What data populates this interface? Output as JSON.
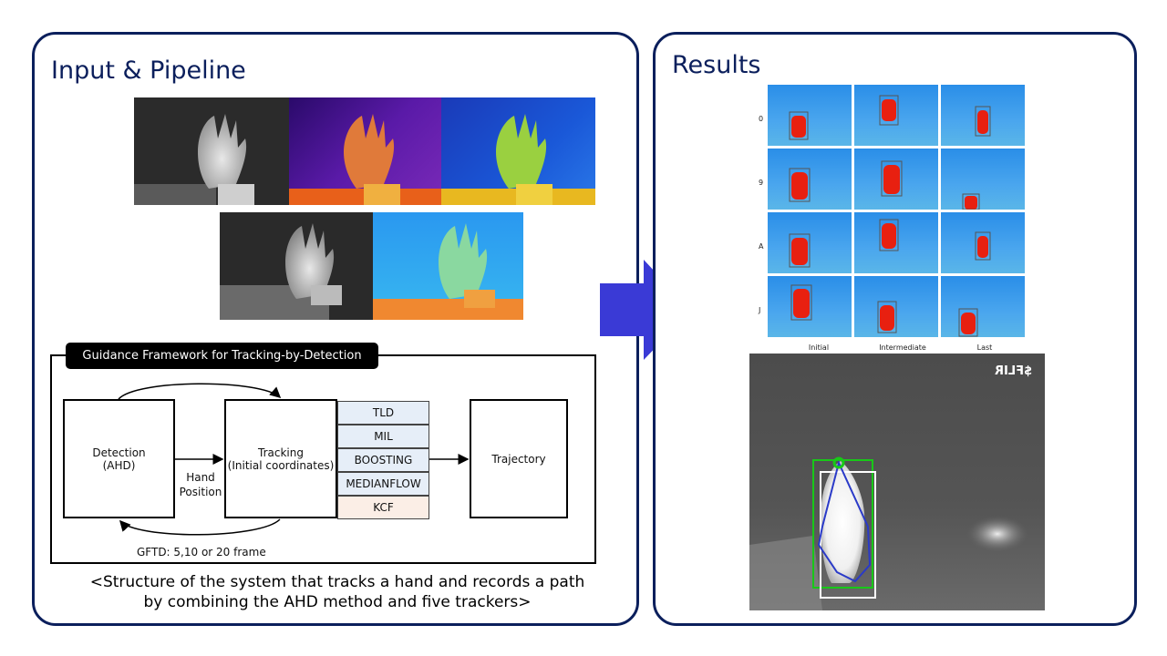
{
  "left_panel": {
    "title": "Input & Pipeline"
  },
  "right_panel": {
    "title": "Results"
  },
  "framework": {
    "title": "Guidance Framework for Tracking-by-Detection",
    "detection_label": "Detection\n(AHD)",
    "tracking_label": "Tracking\n(Initial coordinates)",
    "trackers": [
      "TLD",
      "MIL",
      "BOOSTING",
      "MEDIANFLOW",
      "KCF"
    ],
    "trajectory_label": "Trajectory",
    "hand_position_label": "Hand\nPosition",
    "gftd_label": "GFTD: 5,10 or 20 frame"
  },
  "caption": "<Structure of the system that tracks a hand and records a path by combining the AHD method and five trackers>",
  "results_grid": {
    "row_labels": [
      "0",
      "9",
      "A",
      "J"
    ],
    "col_labels": [
      "Initial",
      "Intermediate",
      "Last"
    ]
  },
  "flir_image": {
    "logo": "$FLIR"
  },
  "colors": {
    "border": "#0b1f5c",
    "arrow": "#3a3ad6",
    "tracker_blue": "#e6eef8",
    "tracker_kcf": "#fbeee6"
  }
}
